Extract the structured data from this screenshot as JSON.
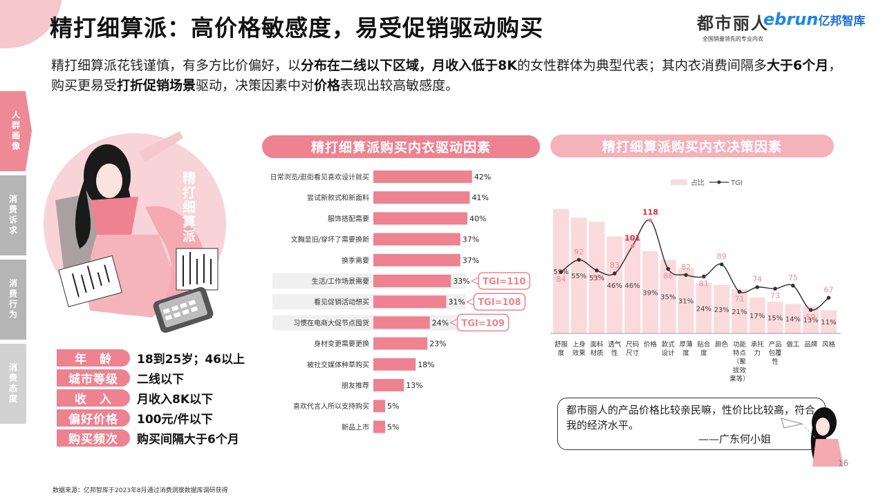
{
  "page": {
    "title": "精打细算派：高价格敏感度，易受促销驱动购买",
    "brand_dushi": "都市丽人",
    "brand_dushi_sub": "全国销量领先的专业内衣",
    "brand_ebrun": "ebrun",
    "brand_ebrun_cn": "亿邦智库",
    "page_number": "16",
    "footnote": "数据来源：亿邦智库于2023年8月通过消费洞察数据库调研获得"
  },
  "intro": {
    "p1": "精打细算派花钱谨慎，有多方比价偏好，以",
    "b1": "分布在二线以下区域，月收入低于8K",
    "p2": "的女性群体为典型代表；其内衣消费间隔多",
    "b2": "大于6个月",
    "p3": "，购买更易受",
    "b3": "打折促销场景",
    "p4": "驱动，决策因素中对",
    "b4": "价格",
    "p5": "表现出较高敏感度。"
  },
  "side_tabs": [
    "人群画像",
    "消费诉求",
    "消费行为",
    "消费态度"
  ],
  "persona": {
    "label": "精打细算派",
    "attributes": [
      {
        "key": "年　龄",
        "value": "18到25岁；46以上"
      },
      {
        "key": "城市等级",
        "value": "二线以下"
      },
      {
        "key": "收　入",
        "value": "月收入8K以下"
      },
      {
        "key": "偏好价格",
        "value": "100元/件以下"
      },
      {
        "key": "购买频次",
        "value": "购买间隔大于6个月"
      }
    ]
  },
  "quote": {
    "text": "都市丽人的产品价格比较亲民嘛，性价比比较高，符合我的经济水平。",
    "sign": "——广东何小姐"
  },
  "colors": {
    "accent": "#ee8290",
    "accent_light": "#f4b3bb",
    "bar_light": "#fadadd",
    "tgi_line": "#333333",
    "highlight_row": "#f0f0f0"
  },
  "chart_data": [
    {
      "type": "bar",
      "orientation": "horizontal",
      "title": "精打细算派购买内衣驱动因素",
      "categories": [
        "日常浏览/逛街看见喜欢设计就买",
        "尝试新款式和新面料",
        "服饰搭配需要",
        "文胸显旧/穿坏了需要换新",
        "换季需要",
        "生活/工作场景需要",
        "看见促销活动想买",
        "习惯在电商大促节点囤货",
        "身材变更需要更换",
        "被社交媒体种草购买",
        "朋友推荐",
        "喜欢代言人所以支持购买",
        "新品上市"
      ],
      "values": [
        42,
        41,
        40,
        37,
        37,
        33,
        31,
        24,
        23,
        18,
        13,
        5,
        5
      ],
      "value_labels": [
        "42%",
        "41%",
        "40%",
        "37%",
        "37%",
        "33%",
        "31%",
        "24%",
        "23%",
        "18%",
        "13%",
        "5%",
        "5%"
      ],
      "highlighted_rows": [
        5,
        6,
        7
      ],
      "annotations": [
        {
          "row": 5,
          "text": "TGI=110"
        },
        {
          "row": 6,
          "text": "TGI=108"
        },
        {
          "row": 7,
          "text": "TGI=109"
        }
      ]
    },
    {
      "type": "bar",
      "title": "精打细算派购买内衣决策因素",
      "legend": [
        "占比",
        "TGI"
      ],
      "legend_position": "top",
      "categories": [
        "舒服度",
        "上身效果",
        "面料材质",
        "透气性",
        "尺码尺寸",
        "价格",
        "款式设计",
        "厚薄度",
        "贴合度",
        "颜色",
        "功能特点（聚拢效果等）",
        "承托力",
        "产品包覆性",
        "做工",
        "品牌",
        "风格"
      ],
      "x_labels_wrapped": [
        [
          "舒服",
          "度"
        ],
        [
          "上身",
          "效果"
        ],
        [
          "面料",
          "材质"
        ],
        [
          "透气",
          "性"
        ],
        [
          "尺码",
          "尺寸"
        ],
        [
          "价格"
        ],
        [
          "款式",
          "设计"
        ],
        [
          "厚薄",
          "度"
        ],
        [
          "贴合",
          "度"
        ],
        [
          "颜色"
        ],
        [
          "功能",
          "特点",
          "（聚",
          "拢效",
          "果等）"
        ],
        [
          "承托",
          "力"
        ],
        [
          "产品",
          "包覆",
          "性"
        ],
        [
          "做工"
        ],
        [
          "品牌"
        ],
        [
          "风格"
        ]
      ],
      "series": [
        {
          "name": "占比",
          "type": "bar",
          "values": [
            59,
            55,
            53,
            46,
            46,
            39,
            35,
            31,
            24,
            23,
            21,
            17,
            15,
            14,
            13,
            11
          ],
          "labels": [
            "59%",
            "55%",
            "53%",
            "46%",
            "46%",
            "39%",
            "35%",
            "31%",
            "24%",
            "23%",
            "21%",
            "17%",
            "15%",
            "14%",
            "13%",
            "11%"
          ]
        },
        {
          "name": "TGI",
          "type": "line",
          "values": [
            84,
            92,
            85,
            83,
            101,
            118,
            86,
            82,
            81,
            89,
            71,
            74,
            73,
            75,
            59,
            67
          ],
          "labels": [
            "84",
            "92",
            "85",
            "83",
            "101",
            "118",
            "86",
            "82",
            "81",
            "89",
            "71",
            "74",
            "73",
            "75",
            "59",
            "67"
          ]
        }
      ],
      "highlighted_points": [
        4,
        5
      ]
    }
  ]
}
